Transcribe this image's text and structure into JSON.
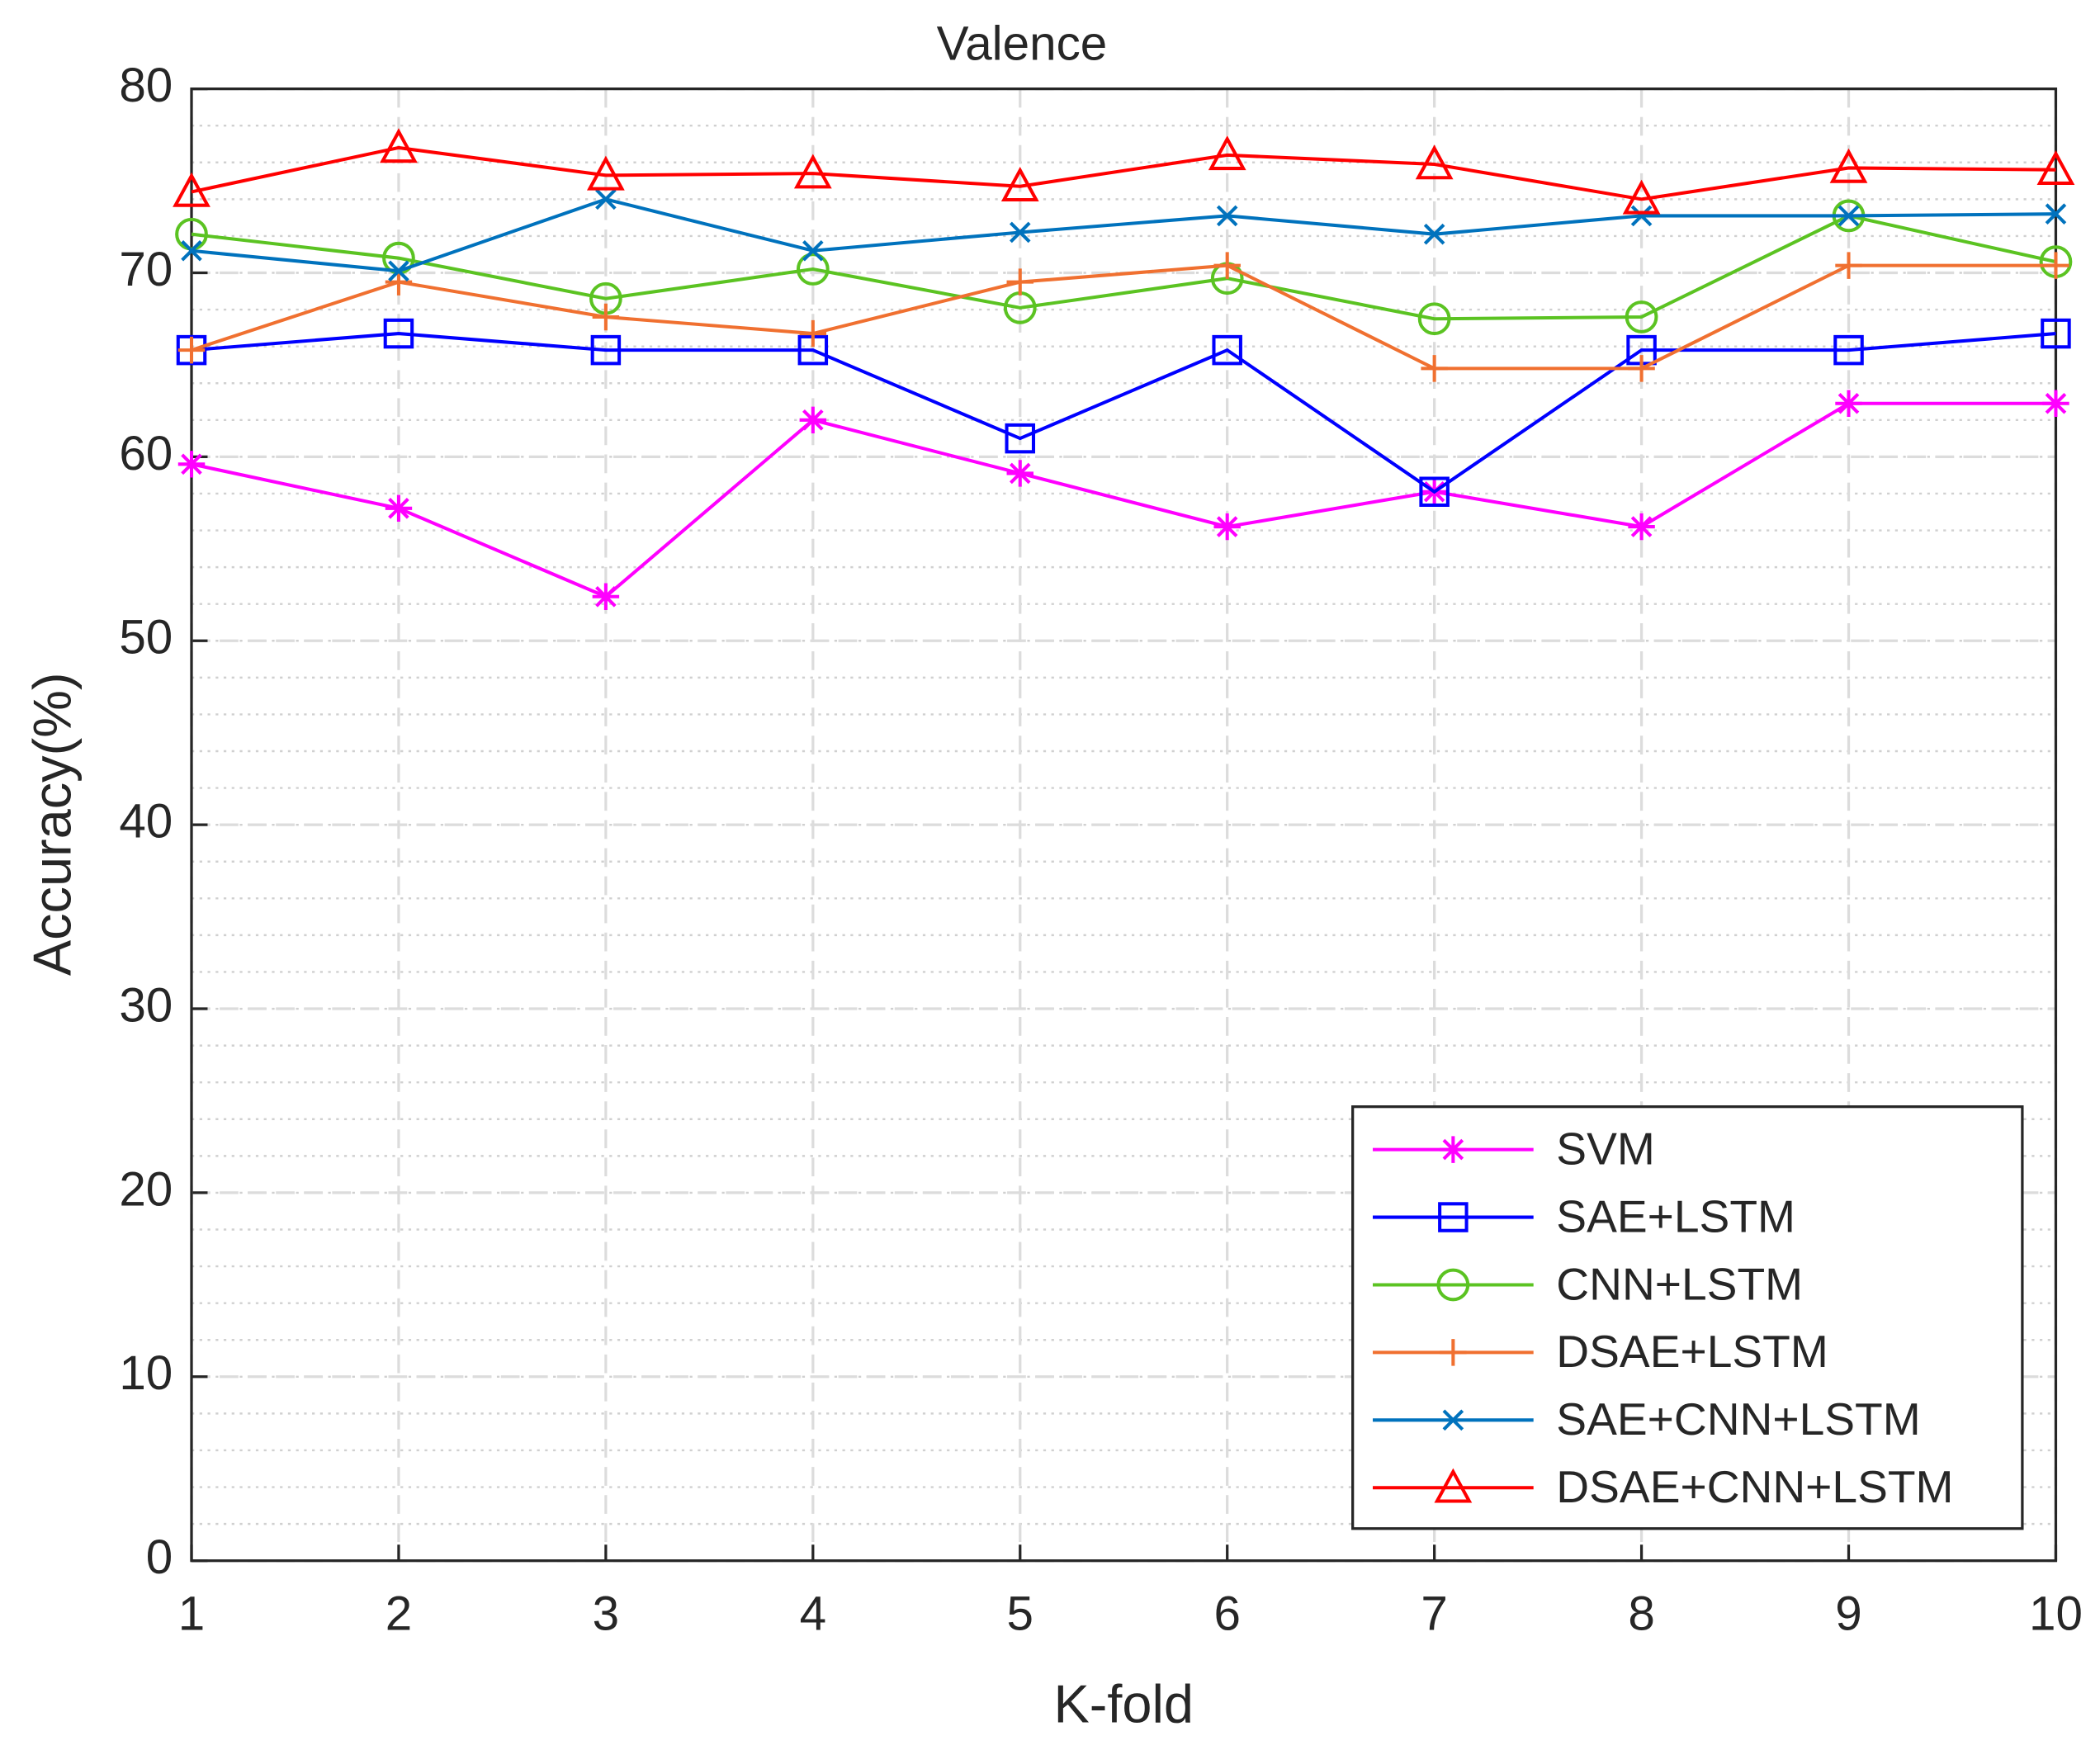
{
  "chart_data": {
    "type": "line",
    "title": "Valence",
    "x_label": "K-fold",
    "y_label": "Accuracy(%)",
    "x": [
      1,
      2,
      3,
      4,
      5,
      6,
      7,
      8,
      9,
      10
    ],
    "xlim": [
      1,
      10
    ],
    "xticks": [
      1,
      2,
      3,
      4,
      5,
      6,
      7,
      8,
      9,
      10
    ],
    "ylim": [
      0,
      80
    ],
    "yticks": [
      0,
      10,
      20,
      30,
      40,
      50,
      60,
      70,
      80
    ],
    "grid": true,
    "minor_grid": true,
    "legend": "lower right",
    "series": [
      {
        "name": "SVM",
        "color": "#ff00ff",
        "marker": "star",
        "values": [
          59.6,
          57.2,
          52.4,
          62.0,
          59.1,
          56.2,
          58.1,
          56.2,
          62.9,
          62.9
        ]
      },
      {
        "name": "SAE+LSTM",
        "color": "#0000ff",
        "marker": "square",
        "values": [
          65.8,
          66.7,
          65.8,
          65.8,
          61.0,
          65.8,
          58.1,
          65.8,
          65.8,
          66.7
        ]
      },
      {
        "name": "CNN+LSTM",
        "color": "#5bc322",
        "marker": "circle",
        "values": [
          72.1,
          70.8,
          68.6,
          70.2,
          68.1,
          69.7,
          67.5,
          67.6,
          73.1,
          70.6
        ]
      },
      {
        "name": "DSAE+LSTM",
        "color": "#f07030",
        "marker": "plus",
        "values": [
          65.8,
          69.5,
          67.6,
          66.7,
          69.5,
          70.4,
          64.8,
          64.8,
          70.4,
          70.4
        ]
      },
      {
        "name": "SAE+CNN+LSTM",
        "color": "#0072bd",
        "marker": "x",
        "values": [
          71.2,
          70.1,
          74.0,
          71.2,
          72.2,
          73.1,
          72.1,
          73.1,
          73.1,
          73.2
        ]
      },
      {
        "name": "DSAE+CNN+LSTM",
        "color": "#ff0000",
        "marker": "triangle",
        "values": [
          74.4,
          76.8,
          75.3,
          75.4,
          74.7,
          76.4,
          75.9,
          74.0,
          75.7,
          75.6
        ]
      }
    ]
  }
}
